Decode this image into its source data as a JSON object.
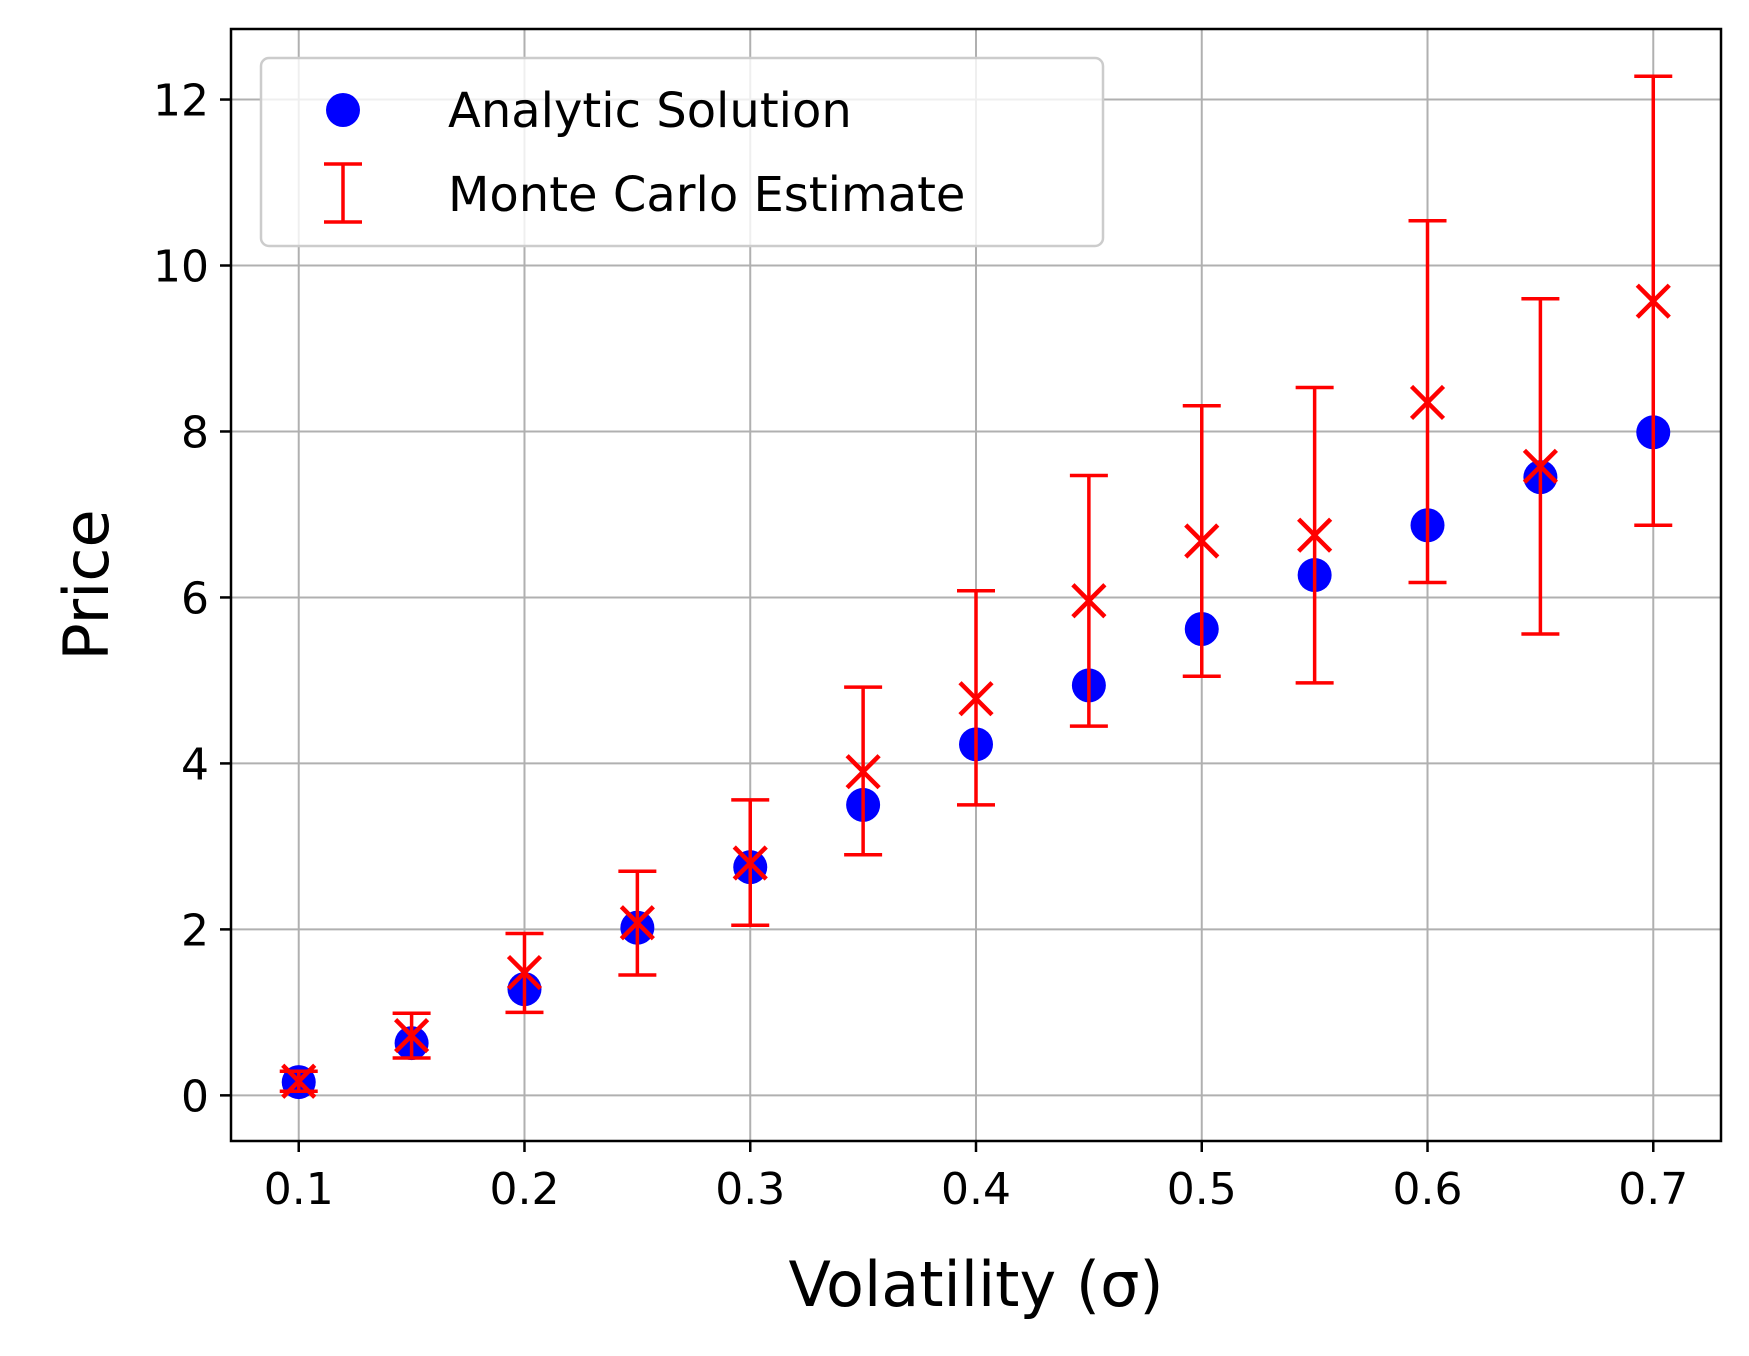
{
  "chart_data": {
    "type": "scatter",
    "xlabel": "Volatility (σ)",
    "ylabel": "Price",
    "xlim": [
      0.07,
      0.73
    ],
    "ylim": [
      -0.55,
      12.85
    ],
    "xticks": [
      "0.1",
      "0.2",
      "0.3",
      "0.4",
      "0.5",
      "0.6",
      "0.7"
    ],
    "yticks": [
      "0",
      "2",
      "4",
      "6",
      "8",
      "10",
      "12"
    ],
    "grid": true,
    "legend_position": "top-left",
    "x": [
      0.1,
      0.15,
      0.2,
      0.25,
      0.3,
      0.35,
      0.4,
      0.45,
      0.5,
      0.55,
      0.6,
      0.65,
      0.7
    ],
    "series": [
      {
        "name": "Analytic Solution",
        "marker": "circle",
        "color": "#0000ff",
        "values": [
          0.16,
          0.63,
          1.28,
          2.02,
          2.75,
          3.5,
          4.23,
          4.94,
          5.62,
          6.27,
          6.87,
          7.45,
          7.99
        ]
      },
      {
        "name": "Monte Carlo Estimate",
        "marker": "x-errorbar",
        "color": "#ff0000",
        "values": [
          0.17,
          0.72,
          1.48,
          2.08,
          2.8,
          3.9,
          4.78,
          5.96,
          6.68,
          6.75,
          8.35,
          7.58,
          9.57
        ],
        "err_low": [
          0.05,
          0.45,
          1.0,
          1.45,
          2.05,
          2.9,
          3.5,
          4.45,
          5.05,
          4.97,
          6.18,
          5.56,
          6.87
        ],
        "err_high": [
          0.29,
          0.99,
          1.95,
          2.7,
          3.56,
          4.92,
          6.08,
          7.47,
          8.31,
          8.53,
          10.54,
          9.6,
          12.28
        ]
      }
    ]
  }
}
